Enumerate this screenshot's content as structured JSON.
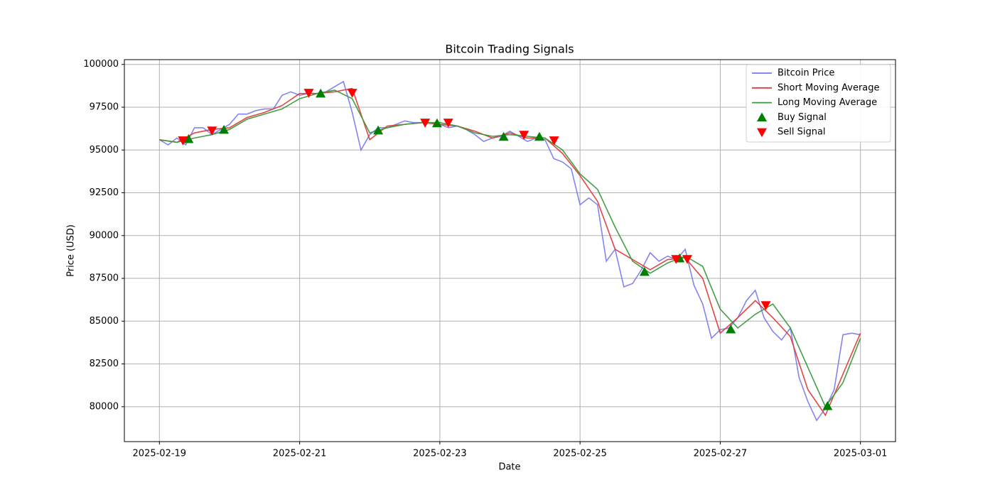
{
  "chart_data": {
    "type": "line",
    "title": "Bitcoin Trading Signals",
    "x_label": "Date",
    "y_label": "Price (USD)",
    "xlim": [
      -0.5,
      10.5
    ],
    "xticks": [
      {
        "value": 0,
        "label": "2025-02-19"
      },
      {
        "value": 2,
        "label": "2025-02-21"
      },
      {
        "value": 4,
        "label": "2025-02-23"
      },
      {
        "value": 6,
        "label": "2025-02-25"
      },
      {
        "value": 8,
        "label": "2025-02-27"
      },
      {
        "value": 10,
        "label": "2025-03-01"
      }
    ],
    "ylim": [
      77960,
      100280
    ],
    "yticks": [
      80000,
      82500,
      85000,
      87500,
      90000,
      92500,
      95000,
      97500,
      100000
    ],
    "grid": true,
    "legend": "upper right",
    "series": [
      {
        "name": "Bitcoin Price",
        "color": "#7777ee",
        "style": "line",
        "x": [
          0,
          0.125,
          0.25,
          0.375,
          0.5,
          0.625,
          0.75,
          0.875,
          1,
          1.125,
          1.25,
          1.375,
          1.5,
          1.625,
          1.75,
          1.875,
          2,
          2.125,
          2.25,
          2.375,
          2.5,
          2.625,
          2.75,
          2.875,
          3,
          3.125,
          3.25,
          3.375,
          3.5,
          3.625,
          3.75,
          3.875,
          4,
          4.125,
          4.25,
          4.375,
          4.5,
          4.625,
          4.75,
          4.875,
          5,
          5.125,
          5.25,
          5.375,
          5.5,
          5.625,
          5.75,
          5.875,
          6,
          6.125,
          6.25,
          6.375,
          6.5,
          6.625,
          6.75,
          6.875,
          7,
          7.125,
          7.25,
          7.375,
          7.5,
          7.625,
          7.75,
          7.875,
          8,
          8.125,
          8.25,
          8.375,
          8.5,
          8.625,
          8.75,
          8.875,
          9,
          9.125,
          9.25,
          9.375,
          9.5,
          9.625,
          9.75,
          9.875,
          10
        ],
        "values": [
          95600,
          95300,
          95700,
          95300,
          96300,
          96300,
          95900,
          96200,
          96500,
          97100,
          97100,
          97300,
          97400,
          97400,
          98200,
          98400,
          98200,
          98300,
          98300,
          98400,
          98700,
          99000,
          97200,
          95000,
          95900,
          96300,
          96300,
          96500,
          96700,
          96600,
          96600,
          96600,
          96500,
          96300,
          96400,
          96200,
          95900,
          95500,
          95700,
          95800,
          96100,
          95800,
          95500,
          95700,
          95600,
          94500,
          94300,
          93900,
          91800,
          92200,
          91800,
          88500,
          89200,
          87000,
          87200,
          88000,
          89000,
          88500,
          88800,
          88600,
          89200,
          87100,
          86000,
          84000,
          84500,
          84600,
          85200,
          86200,
          86800,
          85200,
          84400,
          83900,
          84600,
          81700,
          80300,
          79200,
          79900,
          81000,
          84200,
          84300,
          84200
        ]
      },
      {
        "name": "Short Moving Average",
        "color": "#e03c3c",
        "style": "line",
        "x": [
          0,
          0.25,
          0.5,
          0.75,
          1,
          1.25,
          1.5,
          1.75,
          2,
          2.25,
          2.5,
          2.75,
          3,
          3.25,
          3.5,
          3.75,
          4,
          4.25,
          4.5,
          4.75,
          5,
          5.25,
          5.5,
          5.75,
          6,
          6.25,
          6.5,
          6.75,
          7,
          7.25,
          7.5,
          7.75,
          8,
          8.25,
          8.5,
          8.75,
          9,
          9.25,
          9.5,
          9.75,
          10
        ],
        "values": [
          95600,
          95450,
          96000,
          96200,
          96300,
          96900,
          97200,
          97600,
          98300,
          98300,
          98400,
          98600,
          95600,
          96400,
          96500,
          96600,
          96500,
          96400,
          96100,
          95700,
          96000,
          95700,
          95700,
          94800,
          93500,
          92000,
          89200,
          88600,
          88000,
          88600,
          88700,
          87500,
          84300,
          85200,
          86200,
          85200,
          84100,
          81000,
          79500,
          81900,
          84300
        ]
      },
      {
        "name": "Long Moving Average",
        "color": "#3a9a3a",
        "style": "line",
        "x": [
          0,
          0.25,
          0.5,
          0.75,
          1,
          1.25,
          1.5,
          1.75,
          2,
          2.25,
          2.5,
          2.75,
          3,
          3.25,
          3.5,
          3.75,
          4,
          4.25,
          4.5,
          4.75,
          5,
          5.25,
          5.5,
          5.75,
          6,
          6.25,
          6.5,
          6.75,
          7,
          7.25,
          7.5,
          7.75,
          8,
          8.25,
          8.5,
          8.75,
          9,
          9.25,
          9.5,
          9.75,
          10
        ],
        "values": [
          95600,
          95450,
          95700,
          95900,
          96200,
          96800,
          97100,
          97400,
          98000,
          98300,
          98500,
          98000,
          96000,
          96300,
          96500,
          96600,
          96600,
          96400,
          96000,
          95800,
          95900,
          95800,
          95700,
          95000,
          93600,
          92700,
          90500,
          88500,
          87800,
          88400,
          88800,
          88200,
          85700,
          84600,
          85400,
          86000,
          84600,
          82300,
          80000,
          81400,
          84000
        ]
      },
      {
        "name": "Buy Signal",
        "color": "#008000",
        "style": "triangle-up",
        "x": [
          0.416,
          0.92,
          2.3,
          3.12,
          3.96,
          4.91,
          5.42,
          6.92,
          7.42,
          8.15,
          9.53
        ],
        "values": [
          95640,
          96180,
          98300,
          96140,
          96560,
          95770,
          95770,
          87880,
          88670,
          84520,
          80040
        ]
      },
      {
        "name": "Sell Signal",
        "color": "#ff0000",
        "style": "triangle-down",
        "x": [
          0.335,
          0.75,
          2.13,
          2.75,
          3.79,
          4.12,
          5.2,
          5.63,
          7.37,
          7.53,
          8.65
        ],
        "values": [
          95560,
          96140,
          98340,
          98340,
          96600,
          96600,
          95890,
          95560,
          88630,
          88630,
          85930
        ]
      }
    ]
  }
}
